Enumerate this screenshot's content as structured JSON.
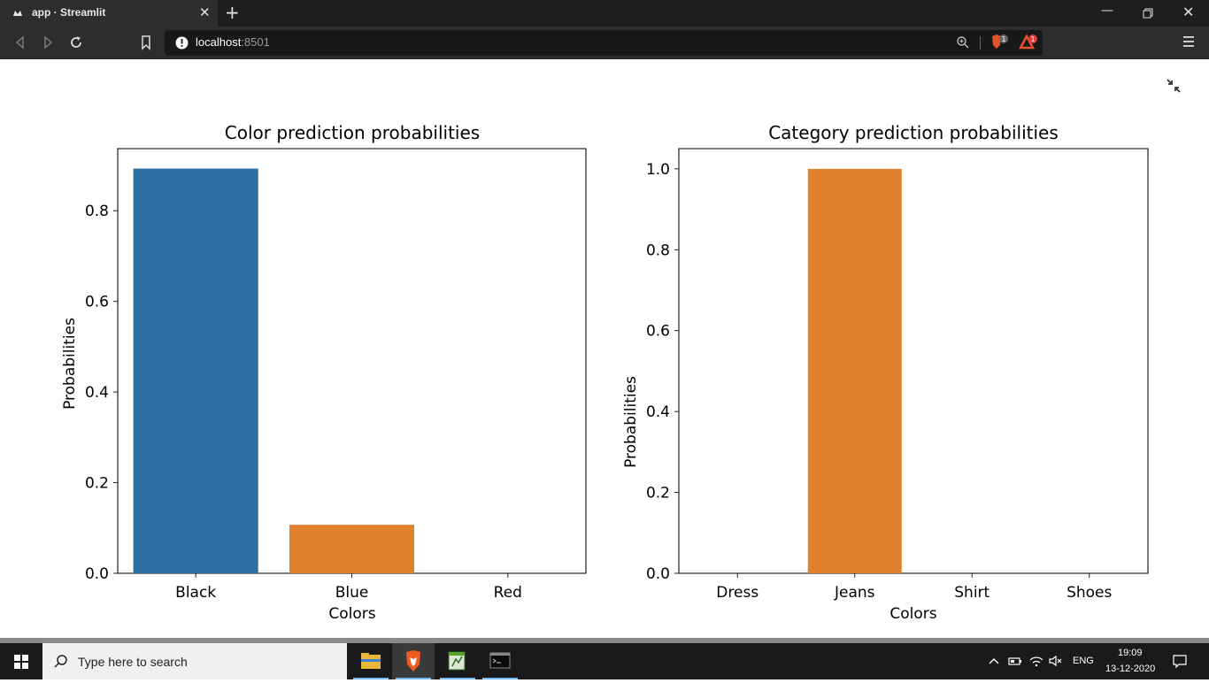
{
  "browser": {
    "tab_title": "app · Streamlit",
    "url_host": "localhost",
    "url_port": ":8501",
    "shield_badge": "1",
    "rewards_badge": "1"
  },
  "charts": {
    "color": {
      "title": "Color prediction probabilities",
      "xlabel": "Colors",
      "ylabel": "Probabilities",
      "yticks": [
        "0.0",
        "0.2",
        "0.4",
        "0.6",
        "0.8"
      ],
      "categories": [
        "Black",
        "Blue",
        "Red"
      ]
    },
    "category": {
      "title": "Category prediction probabilities",
      "xlabel": "Colors",
      "ylabel": "Probabilities",
      "yticks": [
        "0.0",
        "0.2",
        "0.4",
        "0.6",
        "0.8",
        "1.0"
      ],
      "categories": [
        "Dress",
        "Jeans",
        "Shirt",
        "Shoes"
      ]
    }
  },
  "chart_data": [
    {
      "type": "bar",
      "title": "Color prediction probabilities",
      "xlabel": "Colors",
      "ylabel": "Probabilities",
      "categories": [
        "Black",
        "Blue",
        "Red"
      ],
      "values": [
        0.893,
        0.107,
        0.0
      ],
      "colors": [
        "#2e70a1",
        "#e0822d",
        "#2f9e44"
      ],
      "ylim": [
        0,
        0.937
      ],
      "grid": false
    },
    {
      "type": "bar",
      "title": "Category prediction probabilities",
      "xlabel": "Colors",
      "ylabel": "Probabilities",
      "categories": [
        "Dress",
        "Jeans",
        "Shirt",
        "Shoes"
      ],
      "values": [
        0.0,
        1.0,
        0.0,
        0.0
      ],
      "colors": [
        "#2e70a1",
        "#e0822d",
        "#2f9e44",
        "#c73a3a"
      ],
      "ylim": [
        0,
        1.05
      ],
      "grid": false
    }
  ],
  "taskbar": {
    "search_placeholder": "Type here to search",
    "language": "ENG",
    "time": "19:09",
    "date": "13-12-2020"
  }
}
